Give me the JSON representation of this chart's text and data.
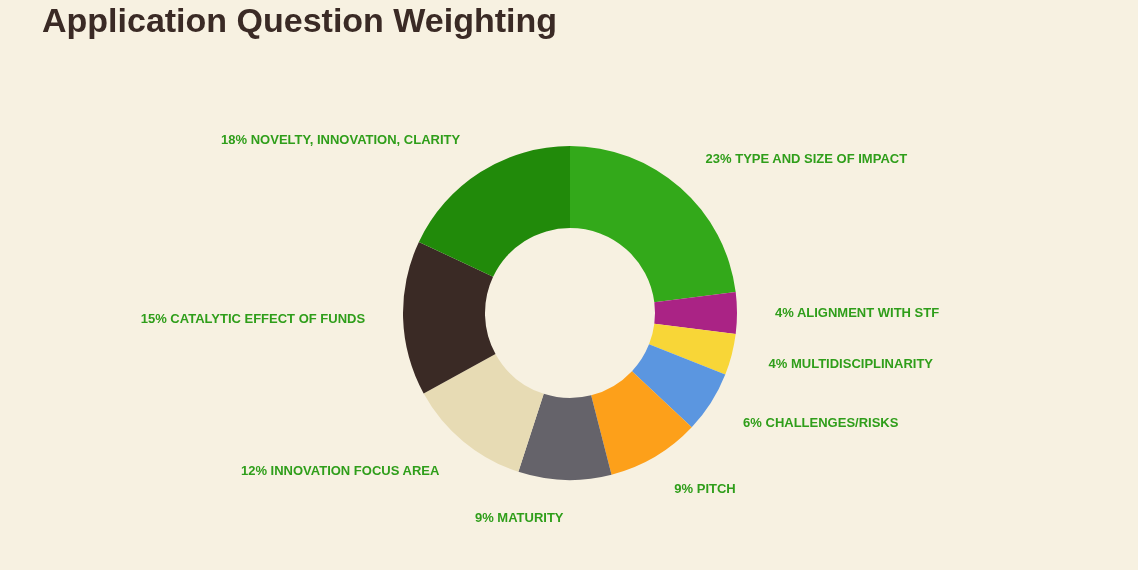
{
  "chart_data": {
    "type": "donut",
    "title": "Application Question Weighting",
    "categories": [
      "TYPE AND SIZE OF IMPACT",
      "ALIGNMENT WITH STF",
      "MULTIDISCIPLINARITY",
      "CHALLENGES/RISKS",
      "PITCH",
      "MATURITY",
      "INNOVATION FOCUS AREA",
      "CATALYTIC EFFECT OF FUNDS",
      "NOVELTY, INNOVATION, CLARITY"
    ],
    "values": [
      23,
      4,
      4,
      6,
      9,
      9,
      12,
      15,
      18
    ],
    "value_labels": [
      "23%",
      "4%",
      "4%",
      "6%",
      "9%",
      "9%",
      "12%",
      "15%",
      "18%"
    ],
    "colors": [
      "#33a91a",
      "#aa2385",
      "#f8d637",
      "#5b96e0",
      "#fda01a",
      "#65636a",
      "#e7dbb4",
      "#3a2a25",
      "#218a0a"
    ],
    "legend": false
  }
}
